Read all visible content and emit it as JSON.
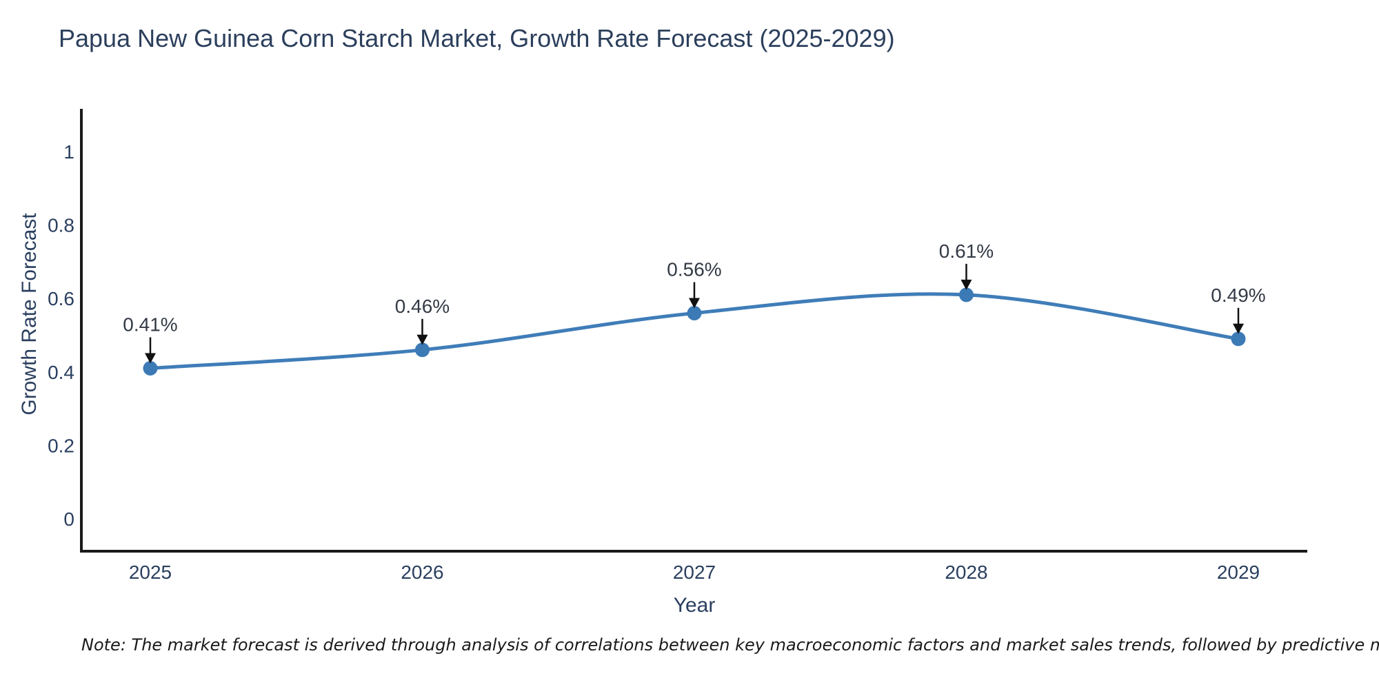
{
  "page": {
    "background": "#ffffff"
  },
  "chart_data": {
    "type": "line",
    "title": "Papua New Guinea Corn Starch Market, Growth Rate Forecast (2025-2029)",
    "xlabel": "Year",
    "ylabel": "Growth Rate Forecast",
    "x": [
      "2025",
      "2026",
      "2027",
      "2028",
      "2029"
    ],
    "series": [
      {
        "name": "Growth Rate Forecast",
        "values": [
          0.41,
          0.46,
          0.56,
          0.61,
          0.49
        ]
      }
    ],
    "point_labels": [
      "0.41%",
      "0.46%",
      "0.56%",
      "0.61%",
      "0.49%"
    ],
    "yticks": [
      "0",
      "0.2",
      "0.4",
      "0.6",
      "0.8",
      "1"
    ],
    "ytick_values": [
      0,
      0.2,
      0.4,
      0.6,
      0.8,
      1
    ],
    "ylim": [
      -0.09,
      1.11
    ],
    "grid": false,
    "legend_position": "none",
    "line_shape": "spline",
    "line_color": "#3f7db8",
    "marker_color": "#3c7ab6",
    "axis_color": "#1a1a1a",
    "text_color": "#2a3f5f",
    "arrow_color": "#111111",
    "note": "Note: The market forecast is derived through analysis of correlations between key macroeconomic factors and market sales trends, followed by predictive modeling to project future sales"
  }
}
